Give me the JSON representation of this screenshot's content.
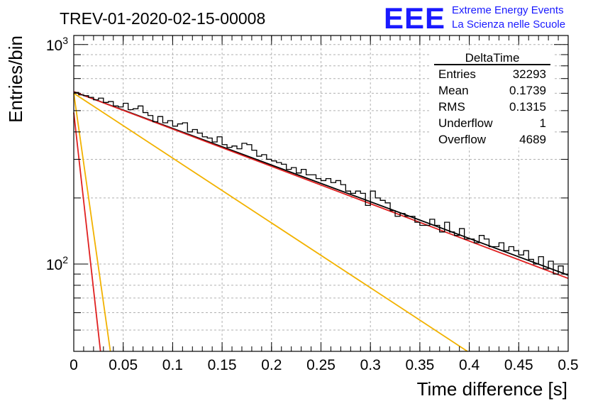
{
  "chart_data": {
    "type": "histogram",
    "title": "TREV-01-2020-02-15-00008",
    "logo": {
      "mark": "EEE",
      "line1": "Extreme Energy Events",
      "line2": "La Scienza nelle Scuole"
    },
    "xlabel": "Time difference [s]",
    "ylabel": "Entries/bin",
    "xlim": [
      0,
      0.5
    ],
    "ylim": [
      40,
      1100
    ],
    "y_scale": "log",
    "grid": true,
    "x_ticks": [
      {
        "value": 0,
        "label": "0"
      },
      {
        "value": 0.05,
        "label": "0.05"
      },
      {
        "value": 0.1,
        "label": "0.1"
      },
      {
        "value": 0.15,
        "label": "0.15"
      },
      {
        "value": 0.2,
        "label": "0.2"
      },
      {
        "value": 0.25,
        "label": "0.25"
      },
      {
        "value": 0.3,
        "label": "0.3"
      },
      {
        "value": 0.35,
        "label": "0.35"
      },
      {
        "value": 0.4,
        "label": "0.4"
      },
      {
        "value": 0.45,
        "label": "0.45"
      },
      {
        "value": 0.5,
        "label": "0.5"
      }
    ],
    "y_ticks": [
      {
        "value": 100,
        "base": "10",
        "exp": "2"
      },
      {
        "value": 1000,
        "base": "10",
        "exp": "3"
      }
    ],
    "stats_box": {
      "name": "DeltaTime",
      "rows": [
        {
          "label": "Entries",
          "value": "32293"
        },
        {
          "label": "Mean",
          "value": "0.1739"
        },
        {
          "label": "RMS",
          "value": "0.1315"
        },
        {
          "label": "Underflow",
          "value": "1"
        },
        {
          "label": "Overflow",
          "value": "4689"
        }
      ]
    },
    "histogram": {
      "bin_width": 0.005,
      "bin_start": 0.0,
      "color": "#000000",
      "values": [
        605,
        590,
        585,
        575,
        560,
        570,
        545,
        550,
        525,
        520,
        540,
        505,
        510,
        525,
        490,
        475,
        445,
        470,
        440,
        450,
        425,
        435,
        440,
        400,
        410,
        395,
        380,
        375,
        360,
        380,
        350,
        340,
        345,
        335,
        355,
        350,
        330,
        310,
        315,
        300,
        295,
        290,
        285,
        270,
        275,
        260,
        270,
        255,
        255,
        245,
        240,
        245,
        235,
        240,
        230,
        215,
        210,
        215,
        210,
        185,
        215,
        200,
        195,
        190,
        175,
        165,
        170,
        165,
        165,
        155,
        150,
        150,
        160,
        150,
        140,
        155,
        140,
        135,
        145,
        130,
        130,
        125,
        135,
        130,
        120,
        120,
        125,
        115,
        120,
        115,
        110,
        115,
        105,
        100,
        108,
        95,
        103,
        90,
        98,
        90
      ]
    },
    "fits": [
      {
        "color": "#000000",
        "kind": "exponential",
        "y0": 610,
        "y1": 89
      },
      {
        "color": "#e02020",
        "kind": "exponential",
        "y0": 610,
        "y1": 86
      },
      {
        "color": "#f2b200",
        "kind": "exponential",
        "y0": 600,
        "y1": 20
      },
      {
        "color": "#f2b200",
        "kind": "exponential_steep",
        "y0": 600,
        "x_at_40": 0.037
      },
      {
        "color": "#e02020",
        "kind": "exponential_steep",
        "y0": 490,
        "x_at_40": 0.027
      }
    ]
  }
}
